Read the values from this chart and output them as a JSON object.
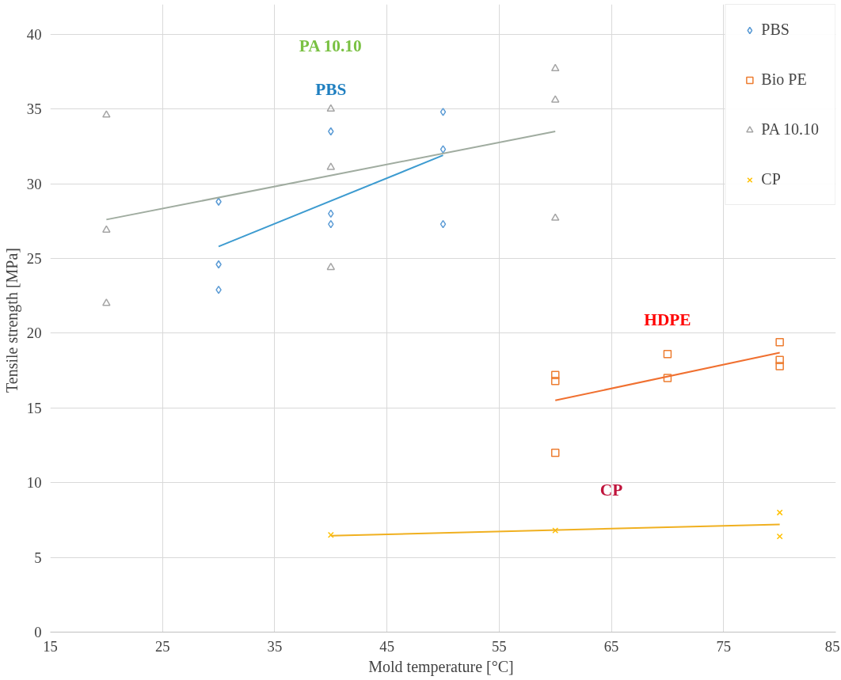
{
  "chart_data": {
    "type": "scatter",
    "xlabel": "Mold temperature  [°C]",
    "ylabel": "Tensile  strength [MPa]",
    "xlim": [
      15,
      85
    ],
    "xticks": [
      15,
      25,
      35,
      45,
      55,
      65,
      75,
      85
    ],
    "ylim": [
      0,
      42
    ],
    "yticks": [
      0,
      5,
      10,
      15,
      20,
      25,
      30,
      35,
      40
    ],
    "grid": true,
    "legend": "top right",
    "series": [
      {
        "name": "PBS",
        "color": "#5b9bd5",
        "marker": "diamond",
        "x": [
          30,
          30,
          30,
          40,
          40,
          40,
          50,
          50,
          50
        ],
        "values": [
          28.8,
          24.6,
          22.9,
          33.5,
          28.0,
          27.3,
          34.8,
          32.3,
          27.3
        ]
      },
      {
        "name": "Bio PE",
        "color": "#ed7d31",
        "marker": "square",
        "x": [
          60,
          60,
          60,
          70,
          70,
          80,
          80,
          80
        ],
        "values": [
          17.2,
          16.8,
          12.0,
          18.6,
          17.0,
          19.4,
          18.2,
          17.8
        ]
      },
      {
        "name": "PA 10.10",
        "color": "#a5a5a5",
        "marker": "triangle",
        "x": [
          20,
          20,
          20,
          40,
          40,
          40,
          60,
          60,
          60
        ],
        "values": [
          34.6,
          26.9,
          22.0,
          35.0,
          31.1,
          24.4,
          37.7,
          35.6,
          27.7
        ]
      },
      {
        "name": "CP",
        "color": "#ffc000",
        "marker": "cross",
        "x": [
          40,
          60,
          80,
          80
        ],
        "values": [
          6.5,
          6.8,
          8.0,
          6.4
        ]
      },
      {
        "type": "line",
        "color": "#3d9bd0",
        "x": [
          30,
          50
        ],
        "values": [
          25.8,
          31.9
        ]
      },
      {
        "type": "line",
        "color": "#a0aca0",
        "x": [
          20,
          60
        ],
        "values": [
          27.6,
          33.5
        ]
      },
      {
        "type": "line",
        "color": "#f07030",
        "x": [
          60,
          80
        ],
        "values": [
          15.5,
          18.7
        ]
      },
      {
        "type": "line",
        "color": "#f0b020",
        "x": [
          40,
          80
        ],
        "values": [
          6.45,
          7.2
        ]
      }
    ],
    "annotations": [
      "PBS",
      "HDPE",
      "PA 10.10",
      "CP"
    ]
  }
}
